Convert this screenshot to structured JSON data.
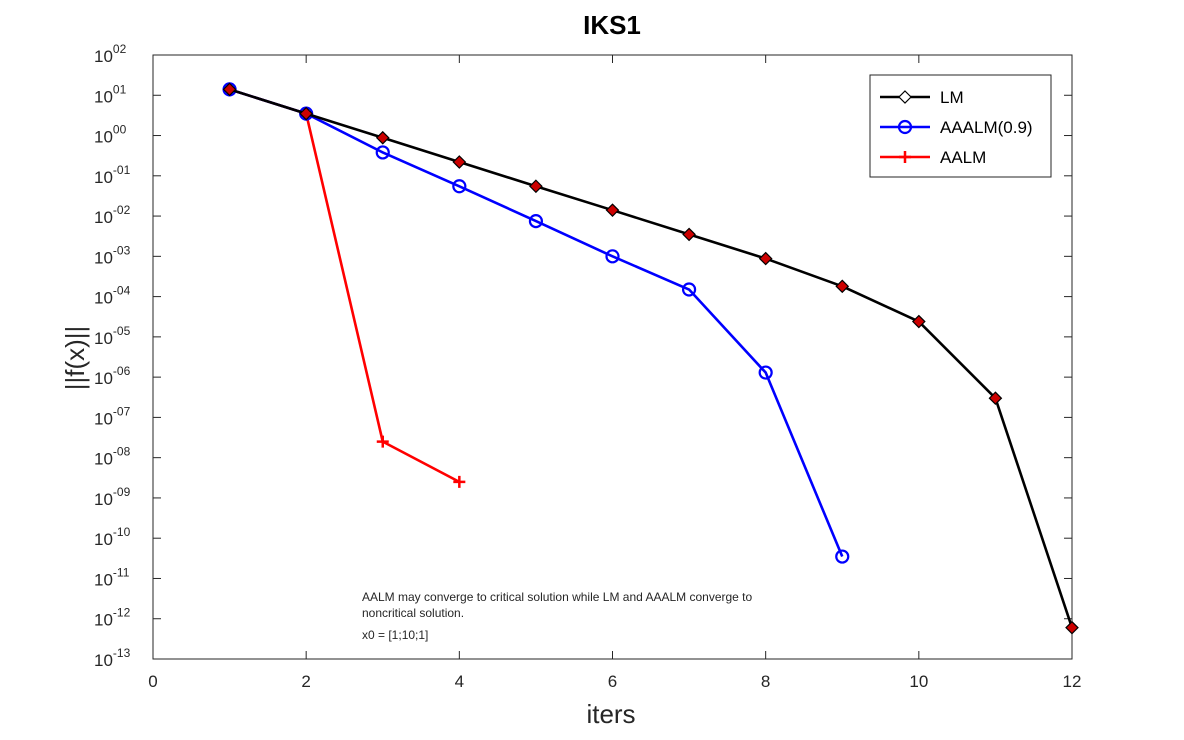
{
  "chart_data": {
    "type": "line",
    "title": "IKS1",
    "xlabel": "iters",
    "ylabel": "||f(x)||",
    "xlim": [
      0,
      12
    ],
    "ylim_exponent": [
      -13,
      2
    ],
    "y_scale": "log",
    "x_ticks": [
      "0",
      "2",
      "4",
      "6",
      "8",
      "10",
      "12"
    ],
    "y_ticks": [
      {
        "base": "10",
        "exp": "02",
        "value": 100
      },
      {
        "base": "10",
        "exp": "01",
        "value": 10
      },
      {
        "base": "10",
        "exp": "00",
        "value": 1
      },
      {
        "base": "10",
        "exp": "-01",
        "value": 0.1
      },
      {
        "base": "10",
        "exp": "-02",
        "value": 0.01
      },
      {
        "base": "10",
        "exp": "-03",
        "value": 0.001
      },
      {
        "base": "10",
        "exp": "-04",
        "value": 0.0001
      },
      {
        "base": "10",
        "exp": "-05",
        "value": 1e-05
      },
      {
        "base": "10",
        "exp": "-06",
        "value": 1e-06
      },
      {
        "base": "10",
        "exp": "-07",
        "value": 1e-07
      },
      {
        "base": "10",
        "exp": "-08",
        "value": 1e-08
      },
      {
        "base": "10",
        "exp": "-09",
        "value": 1e-09
      },
      {
        "base": "10",
        "exp": "-10",
        "value": 1e-10
      },
      {
        "base": "10",
        "exp": "-11",
        "value": 1e-11
      },
      {
        "base": "10",
        "exp": "-12",
        "value": 1e-12
      },
      {
        "base": "10",
        "exp": "-13",
        "value": 1e-13
      }
    ],
    "legend_position": "top-right",
    "series": [
      {
        "name": "LM",
        "color": "#000000",
        "marker": "diamond",
        "x": [
          1,
          2,
          3,
          4,
          5,
          6,
          7,
          8,
          9,
          10,
          11,
          12
        ],
        "y": [
          14,
          3.5,
          0.88,
          0.22,
          0.055,
          0.014,
          0.0035,
          0.00088,
          0.00018,
          2.4e-05,
          3e-07,
          6e-13
        ]
      },
      {
        "name": "AAALM(0.9)",
        "color": "#0000ff",
        "marker": "circle",
        "x": [
          1,
          2,
          3,
          4,
          5,
          6,
          7,
          8,
          9
        ],
        "y": [
          14,
          3.5,
          0.38,
          0.055,
          0.0075,
          0.001,
          0.00015,
          1.3e-06,
          3.5e-11
        ]
      },
      {
        "name": "AALM",
        "color": "#ff0000",
        "marker": "plus",
        "x": [
          1,
          2,
          3,
          4
        ],
        "y": [
          14,
          3.5,
          2.5e-08,
          2.5e-09
        ]
      }
    ],
    "annotations": [
      "AALM may converge to critical solution while LM and AAALM converge to",
      "noncritical solution.",
      "x0 = [1;10;1]"
    ]
  }
}
